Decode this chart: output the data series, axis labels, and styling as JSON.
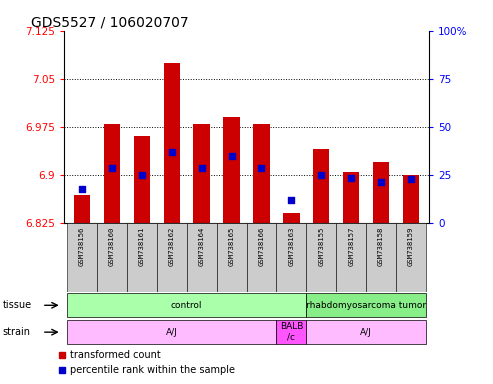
{
  "title": "GDS5527 / 106020707",
  "samples": [
    "GSM738156",
    "GSM738160",
    "GSM738161",
    "GSM738162",
    "GSM738164",
    "GSM738165",
    "GSM738166",
    "GSM738163",
    "GSM738155",
    "GSM738157",
    "GSM738158",
    "GSM738159"
  ],
  "bar_bottoms": [
    6.825,
    6.825,
    6.825,
    6.825,
    6.825,
    6.825,
    6.825,
    6.825,
    6.825,
    6.825,
    6.825,
    6.825
  ],
  "bar_tops": [
    6.868,
    6.98,
    6.96,
    7.075,
    6.98,
    6.99,
    6.98,
    6.84,
    6.94,
    6.905,
    6.92,
    6.9
  ],
  "blue_dot_y": [
    6.878,
    6.91,
    6.9,
    6.935,
    6.91,
    6.93,
    6.91,
    6.86,
    6.9,
    6.895,
    6.888,
    6.893
  ],
  "ymin": 6.825,
  "ymax": 7.125,
  "yticks_left": [
    6.825,
    6.9,
    6.975,
    7.05,
    7.125
  ],
  "yticks_right_vals": [
    0,
    25,
    50,
    75,
    100
  ],
  "bar_color": "#cc0000",
  "dot_color": "#0000cc",
  "tissue_groups": [
    {
      "label": "control",
      "start": 0,
      "end": 8,
      "color": "#aaffaa"
    },
    {
      "label": "rhabdomyosarcoma tumor",
      "start": 8,
      "end": 12,
      "color": "#88ee88"
    }
  ],
  "strain_groups": [
    {
      "label": "A/J",
      "start": 0,
      "end": 7,
      "color": "#ffaaff"
    },
    {
      "label": "BALB\n/c",
      "start": 7,
      "end": 8,
      "color": "#ff66ff"
    },
    {
      "label": "A/J",
      "start": 8,
      "end": 12,
      "color": "#ffaaff"
    }
  ],
  "legend_items": [
    {
      "label": "transformed count",
      "color": "#cc0000"
    },
    {
      "label": "percentile rank within the sample",
      "color": "#0000cc"
    }
  ],
  "tick_fontsize": 7.5,
  "bar_fontsize": 5.5
}
